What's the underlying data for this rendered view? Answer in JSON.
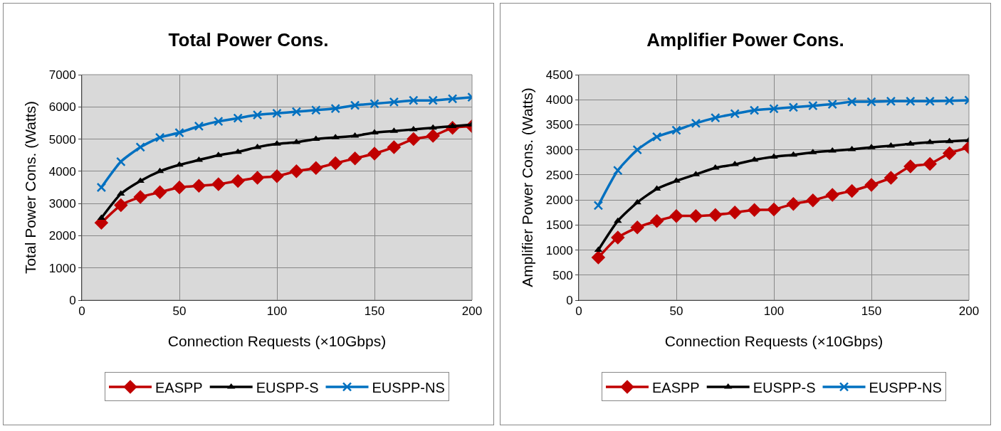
{
  "chart_data": [
    {
      "type": "line",
      "title": "Total Power Cons.",
      "xlabel": "Connection Requests (×10Gbps)",
      "ylabel": "Total Power Cons. (Watts)",
      "x": [
        10,
        20,
        30,
        40,
        50,
        60,
        70,
        80,
        90,
        100,
        110,
        120,
        130,
        140,
        150,
        160,
        170,
        180,
        190,
        200
      ],
      "xlim": [
        0,
        200
      ],
      "xticks": [
        0,
        50,
        100,
        150,
        200
      ],
      "ylim": [
        0,
        7000
      ],
      "yticks": [
        0,
        1000,
        2000,
        3000,
        4000,
        5000,
        6000,
        7000
      ],
      "grid": true,
      "legend": "bottom",
      "series": [
        {
          "name": "EASPP",
          "color": "#c00000",
          "marker": "diamond",
          "values": [
            2400,
            2950,
            3200,
            3350,
            3500,
            3550,
            3600,
            3700,
            3800,
            3850,
            4000,
            4100,
            4250,
            4400,
            4550,
            4750,
            5000,
            5100,
            5350,
            5400
          ]
        },
        {
          "name": "EUSPP-S",
          "color": "#000000",
          "marker": "triangle",
          "values": [
            2550,
            3300,
            3700,
            4000,
            4200,
            4350,
            4500,
            4600,
            4750,
            4850,
            4900,
            5000,
            5050,
            5100,
            5200,
            5250,
            5300,
            5350,
            5400,
            5450
          ]
        },
        {
          "name": "EUSPP-NS",
          "color": "#0070c0",
          "marker": "cross",
          "values": [
            3500,
            4300,
            4750,
            5050,
            5200,
            5400,
            5550,
            5650,
            5750,
            5800,
            5850,
            5900,
            5950,
            6050,
            6100,
            6150,
            6200,
            6200,
            6250,
            6300
          ]
        }
      ]
    },
    {
      "type": "line",
      "title": "Amplifier Power Cons.",
      "xlabel": "Connection Requests (×10Gbps)",
      "ylabel": "Amplifier Power Cons. (Watts)",
      "x": [
        10,
        20,
        30,
        40,
        50,
        60,
        70,
        80,
        90,
        100,
        110,
        120,
        130,
        140,
        150,
        160,
        170,
        180,
        190,
        200
      ],
      "xlim": [
        0,
        200
      ],
      "xticks": [
        0,
        50,
        100,
        150,
        200
      ],
      "ylim": [
        0,
        4500
      ],
      "yticks": [
        0,
        500,
        1000,
        1500,
        2000,
        2500,
        3000,
        3500,
        4000,
        4500
      ],
      "grid": true,
      "legend": "bottom",
      "series": [
        {
          "name": "EASPP",
          "color": "#c00000",
          "marker": "diamond",
          "values": [
            850,
            1250,
            1450,
            1580,
            1680,
            1680,
            1700,
            1750,
            1800,
            1810,
            1920,
            1990,
            2100,
            2180,
            2300,
            2440,
            2670,
            2720,
            2930,
            3050
          ]
        },
        {
          "name": "EUSPP-S",
          "color": "#000000",
          "marker": "triangle",
          "values": [
            1000,
            1580,
            1950,
            2220,
            2380,
            2510,
            2640,
            2710,
            2800,
            2860,
            2900,
            2950,
            2980,
            3010,
            3050,
            3080,
            3120,
            3150,
            3170,
            3190
          ]
        },
        {
          "name": "EUSPP-NS",
          "color": "#0070c0",
          "marker": "cross",
          "values": [
            1890,
            2590,
            3000,
            3260,
            3390,
            3530,
            3640,
            3720,
            3790,
            3820,
            3850,
            3880,
            3910,
            3960,
            3960,
            3970,
            3970,
            3970,
            3980,
            3990
          ]
        }
      ]
    }
  ]
}
